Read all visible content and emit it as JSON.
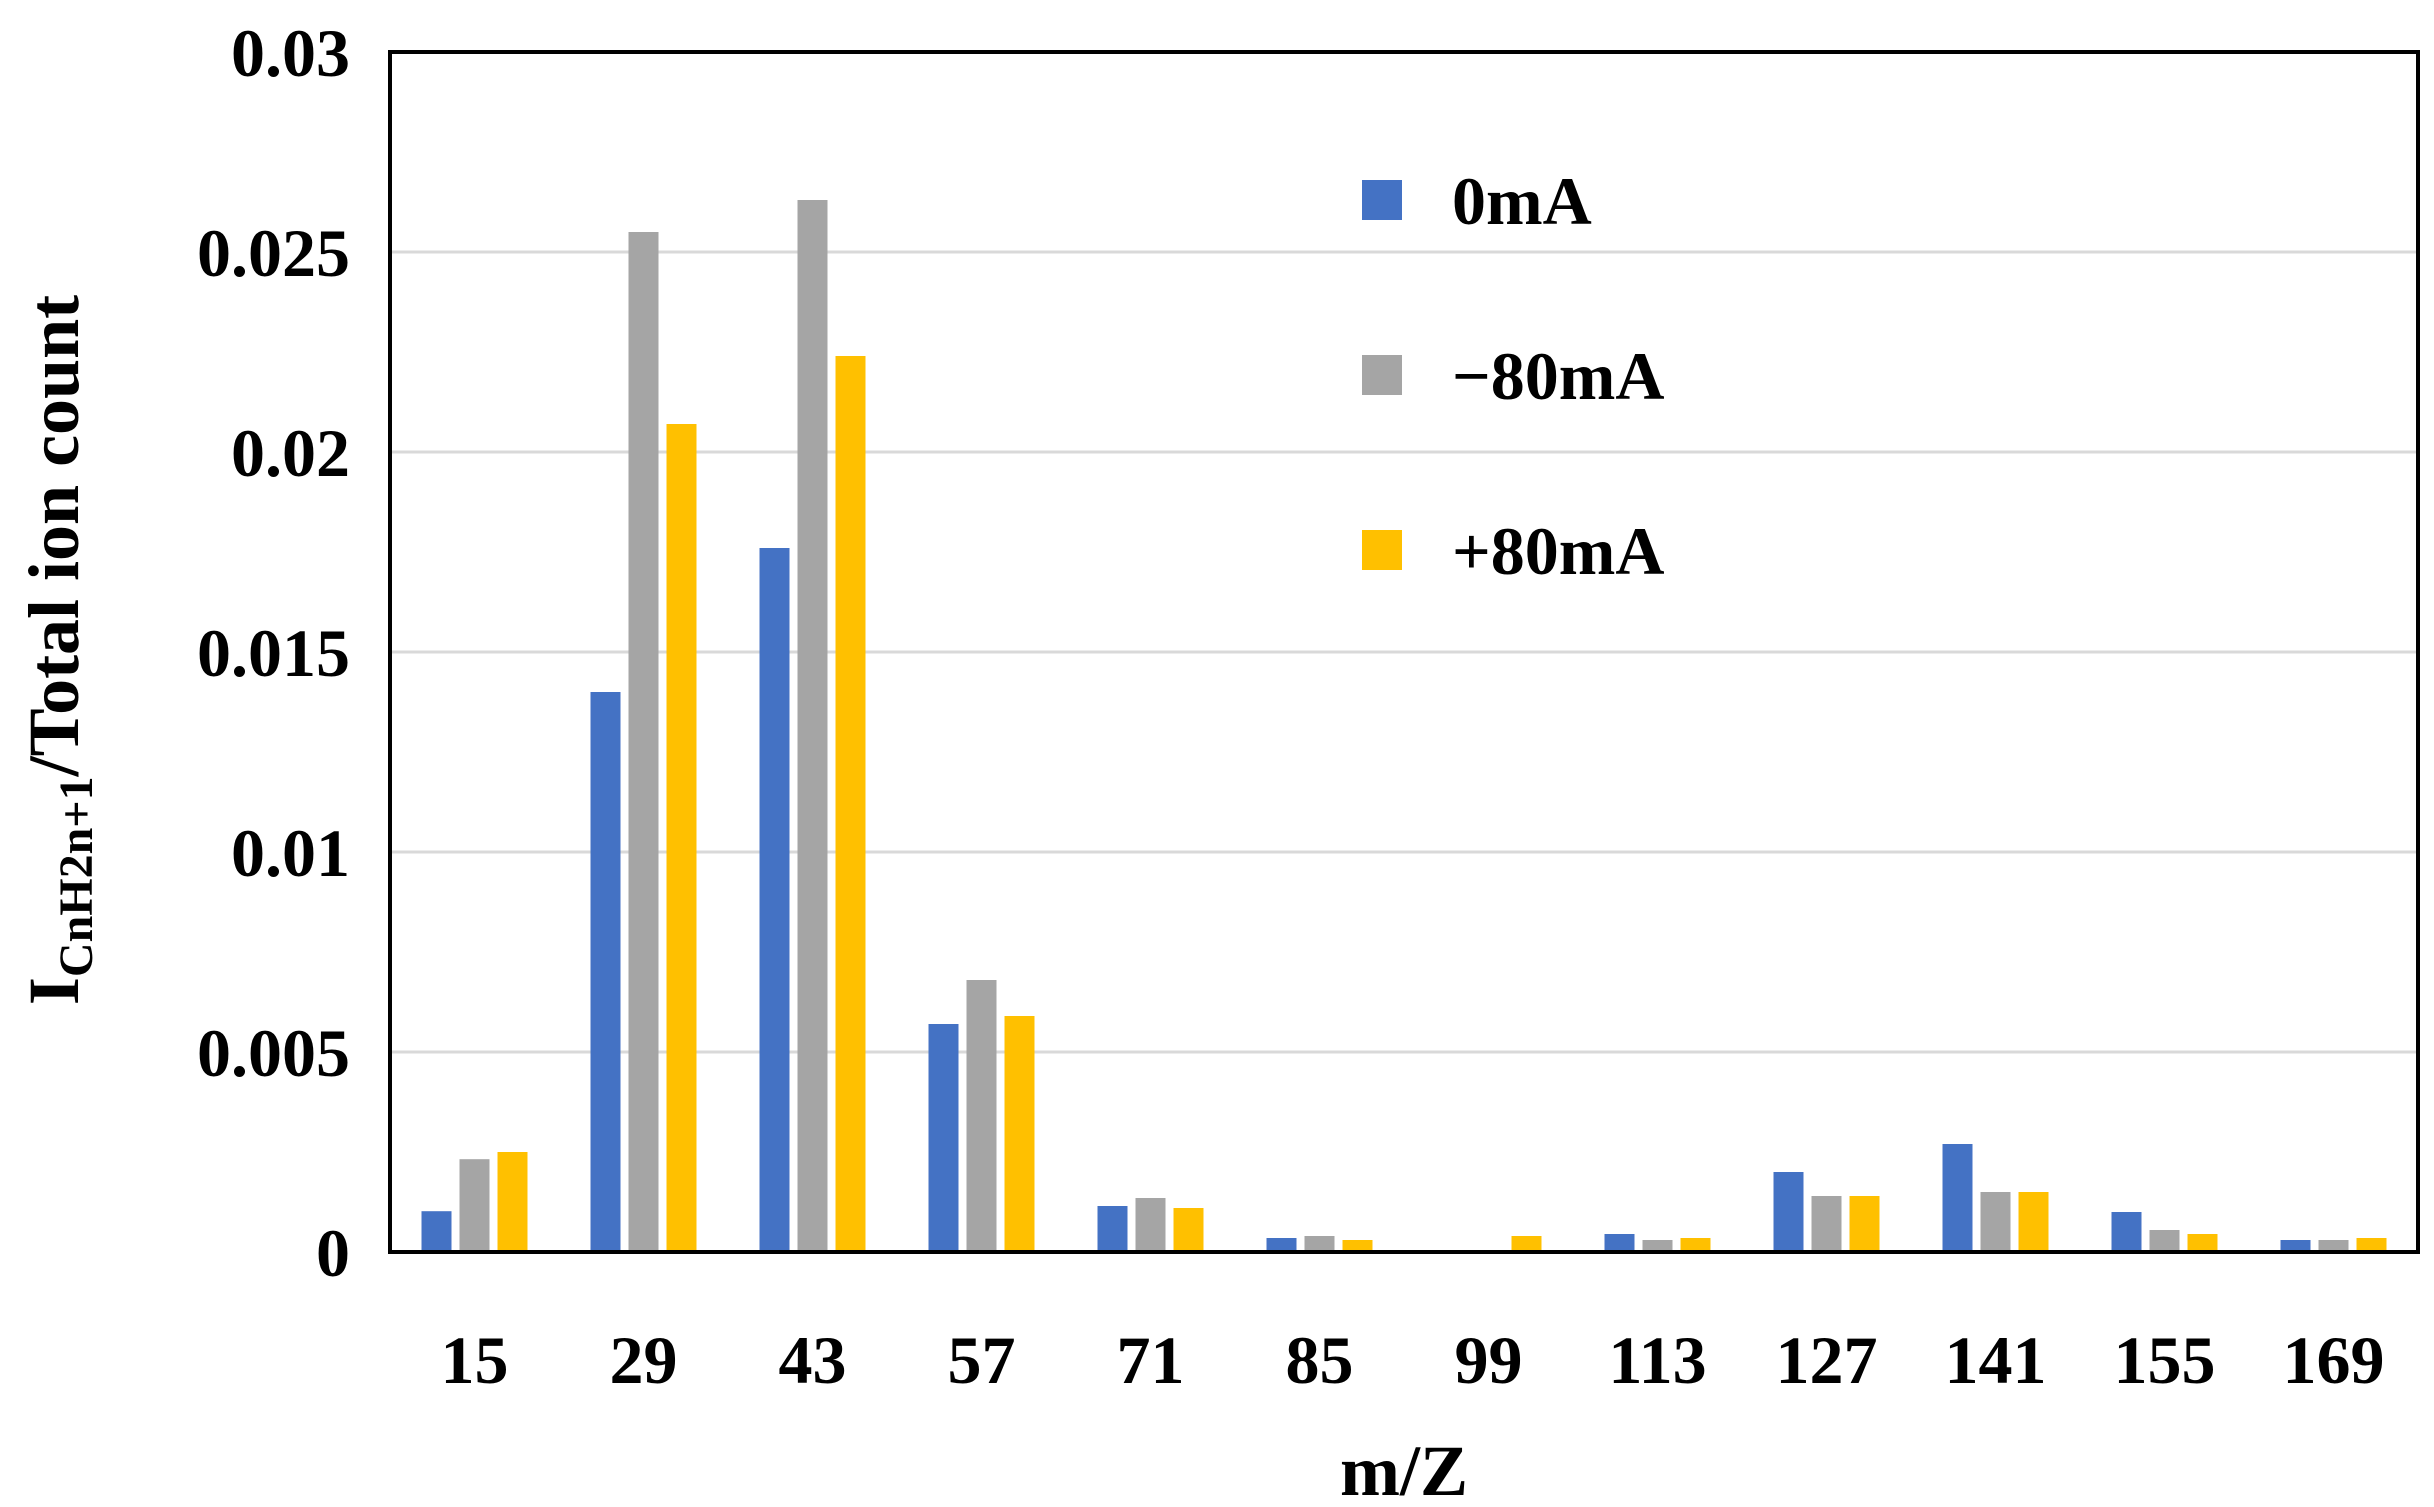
{
  "chart_data": {
    "type": "bar",
    "title": "",
    "xlabel": "m/Z",
    "ylabel": {
      "main": "I",
      "subscript": "CnH2n+1",
      "rest": "/Total ion count"
    },
    "categories": [
      "15",
      "29",
      "43",
      "57",
      "71",
      "85",
      "99",
      "113",
      "127",
      "141",
      "155",
      "169"
    ],
    "series": [
      {
        "name": "0mA",
        "color": "#4472C4",
        "values": [
          0.00102,
          0.014,
          0.0176,
          0.0057,
          0.00115,
          0.00035,
          2e-05,
          0.00045,
          0.002,
          0.0027,
          0.001,
          0.0003
        ]
      },
      {
        "name": "−80mA",
        "color": "#A5A5A5",
        "values": [
          0.00232,
          0.0255,
          0.0263,
          0.0068,
          0.00135,
          0.0004,
          1e-05,
          0.0003,
          0.0014,
          0.0015,
          0.00055,
          0.0003
        ]
      },
      {
        "name": "+80mA",
        "color": "#FFC000",
        "values": [
          0.0025,
          0.0207,
          0.0224,
          0.0059,
          0.0011,
          0.0003,
          0.0004,
          0.00035,
          0.0014,
          0.0015,
          0.00045,
          0.00035
        ]
      }
    ],
    "ylim": [
      0,
      0.03
    ],
    "yticks": [
      0,
      0.005,
      0.01,
      0.015,
      0.02,
      0.025,
      0.03
    ],
    "ytick_labels": [
      "0",
      "0.005",
      "0.01",
      "0.015",
      "0.02",
      "0.025",
      "0.03"
    ],
    "grid": true,
    "legend_position": "top-center"
  }
}
